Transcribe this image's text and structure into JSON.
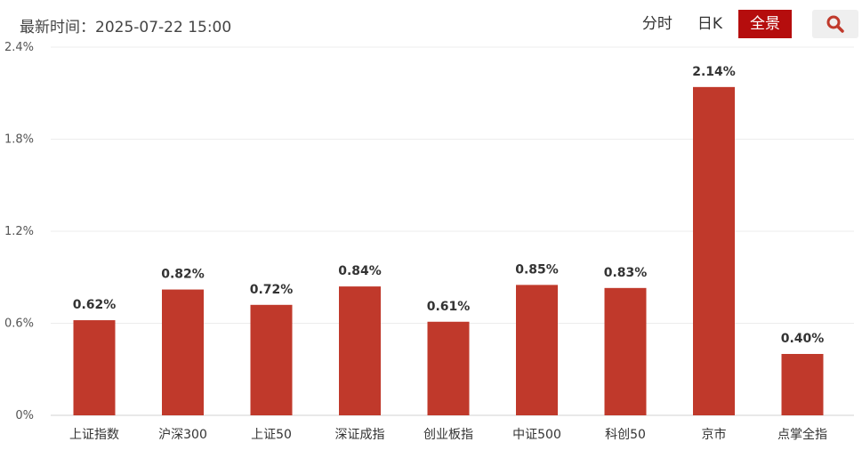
{
  "header": {
    "update_label": "最新时间：2025-07-22 15:00",
    "tabs": [
      {
        "label": "分时",
        "active": false
      },
      {
        "label": "日K",
        "active": false
      },
      {
        "label": "全景",
        "active": true
      }
    ],
    "search_icon": "search-icon",
    "accent_color": "#b50d0d",
    "search_icon_color": "#c0392b"
  },
  "chart_data": {
    "type": "bar",
    "categories": [
      "上证指数",
      "沪深300",
      "上证50",
      "深证成指",
      "创业板指",
      "中证500",
      "科创50",
      "京市",
      "点掌全指"
    ],
    "values": [
      0.62,
      0.82,
      0.72,
      0.84,
      0.61,
      0.85,
      0.83,
      2.14,
      0.4
    ],
    "value_labels": [
      "0.62%",
      "0.82%",
      "0.72%",
      "0.84%",
      "0.61%",
      "0.85%",
      "0.83%",
      "2.14%",
      "0.40%"
    ],
    "yticks": [
      "0%",
      "0.6%",
      "1.2%",
      "1.8%",
      "2.4%"
    ],
    "ytick_values": [
      0,
      0.6,
      1.2,
      1.8,
      2.4
    ],
    "ylim": [
      0,
      2.4
    ],
    "grid": true,
    "bar_color": "#c0392b"
  }
}
